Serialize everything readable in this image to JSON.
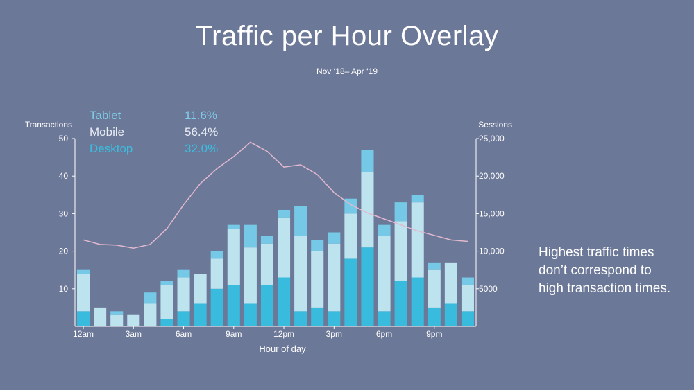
{
  "title": "Traffic per Hour Overlay",
  "subtitle": "Nov ‘18– Apr ‘19",
  "note": "Highest traffic times don’t correspond to high transaction times.",
  "legend": [
    {
      "label": "Tablet",
      "value": "11.6%",
      "color": "#7fcde8"
    },
    {
      "label": "Mobile",
      "value": "56.4%",
      "color": "#e8eef5"
    },
    {
      "label": "Desktop",
      "value": "32.0%",
      "color": "#3bbde0"
    }
  ],
  "colors": {
    "desktop": "#38bbdd",
    "mobile": "#bde3ef",
    "tablet": "#76c9e6",
    "sessions_line": "#e2b9cf",
    "axis": "#ffffff"
  },
  "chart_data": {
    "type": "bar",
    "stacked": true,
    "xlabel": "Hour of day",
    "ylabel": "Transactions",
    "y2label": "Sessions",
    "ylim": [
      0,
      50
    ],
    "y2lim": [
      0,
      25000
    ],
    "yticks": [
      10,
      20,
      30,
      40,
      50
    ],
    "y2ticks": [
      "5000",
      "10,000",
      "15,000",
      "20,000",
      "25,000"
    ],
    "y2tick_values": [
      5000,
      10000,
      15000,
      20000,
      25000
    ],
    "x_tick_labels": [
      {
        "hour": 0,
        "label": "12am"
      },
      {
        "hour": 3,
        "label": "3am"
      },
      {
        "hour": 6,
        "label": "6am"
      },
      {
        "hour": 9,
        "label": "9am"
      },
      {
        "hour": 12,
        "label": "12pm"
      },
      {
        "hour": 15,
        "label": "3pm"
      },
      {
        "hour": 18,
        "label": "6pm"
      },
      {
        "hour": 21,
        "label": "9pm"
      }
    ],
    "hours": [
      0,
      1,
      2,
      3,
      4,
      5,
      6,
      7,
      8,
      9,
      10,
      11,
      12,
      13,
      14,
      15,
      16,
      17,
      18,
      19,
      20,
      21,
      22,
      23
    ],
    "series": [
      {
        "name": "Desktop",
        "values": [
          4,
          0,
          0,
          0,
          0,
          2,
          4,
          6,
          10,
          11,
          6,
          11,
          13,
          4,
          5,
          4,
          18,
          21,
          4,
          12,
          13,
          5,
          6,
          4
        ]
      },
      {
        "name": "Mobile",
        "values": [
          10,
          5,
          3,
          3,
          6,
          9,
          9,
          8,
          8,
          15,
          15,
          11,
          16,
          20,
          15,
          18,
          12,
          20,
          20,
          16,
          20,
          10,
          11,
          7
        ]
      },
      {
        "name": "Tablet",
        "values": [
          1,
          0,
          1,
          0,
          3,
          1,
          2,
          0,
          2,
          1,
          6,
          2,
          2,
          8,
          3,
          3,
          4,
          6,
          3,
          5,
          2,
          2,
          0,
          2
        ]
      },
      {
        "name": "Sessions",
        "axis": "right",
        "type": "line",
        "values": [
          11500,
          10900,
          10800,
          10400,
          10900,
          13000,
          16200,
          19000,
          21000,
          22600,
          24500,
          23300,
          21200,
          21500,
          20200,
          17800,
          16200,
          15100,
          14300,
          13500,
          12700,
          12100,
          11500,
          11300
        ]
      }
    ]
  }
}
